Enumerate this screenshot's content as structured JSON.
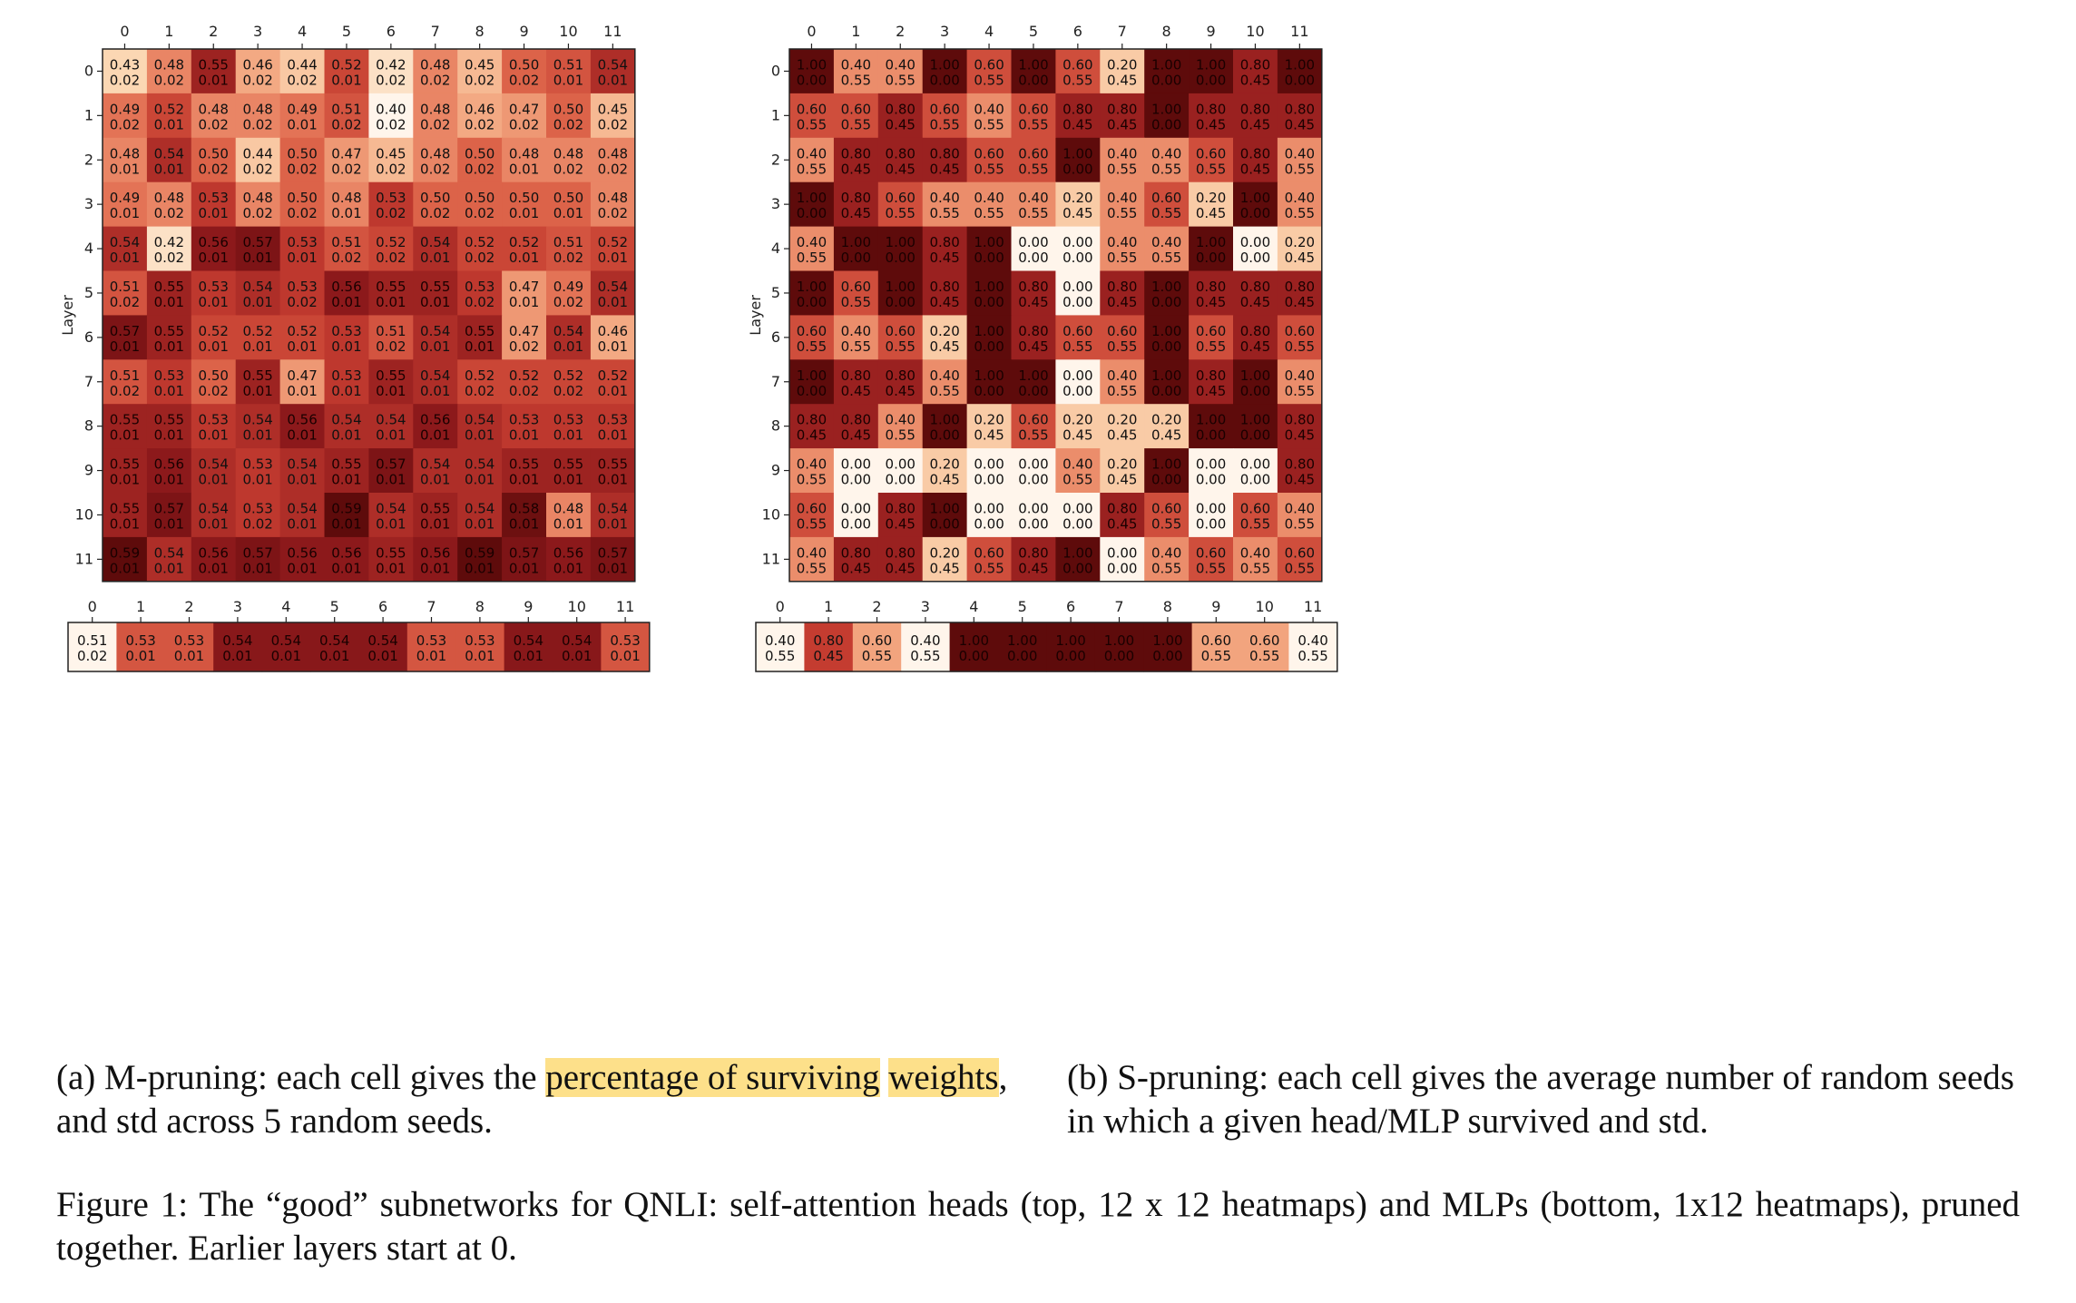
{
  "chart_data": [
    {
      "id": "m_heads",
      "type": "heatmap",
      "ylabel": "Layer",
      "x": [
        "0",
        "1",
        "2",
        "3",
        "4",
        "5",
        "6",
        "7",
        "8",
        "9",
        "10",
        "11"
      ],
      "y": [
        "0",
        "1",
        "2",
        "3",
        "4",
        "5",
        "6",
        "7",
        "8",
        "9",
        "10",
        "11"
      ],
      "values": [
        [
          "0.43\n0.02",
          "0.48\n0.02",
          "0.55\n0.01",
          "0.46\n0.02",
          "0.44\n0.02",
          "0.52\n0.01",
          "0.42\n0.02",
          "0.48\n0.02",
          "0.45\n0.02",
          "0.50\n0.02",
          "0.51\n0.01",
          "0.54\n0.01"
        ],
        [
          "0.49\n0.02",
          "0.52\n0.01",
          "0.48\n0.02",
          "0.48\n0.02",
          "0.49\n0.01",
          "0.51\n0.02",
          "0.40\n0.02",
          "0.48\n0.02",
          "0.46\n0.02",
          "0.47\n0.02",
          "0.50\n0.02",
          "0.45\n0.02"
        ],
        [
          "0.48\n0.01",
          "0.54\n0.01",
          "0.50\n0.02",
          "0.44\n0.02",
          "0.50\n0.02",
          "0.47\n0.02",
          "0.45\n0.02",
          "0.48\n0.02",
          "0.50\n0.02",
          "0.48\n0.01",
          "0.48\n0.02",
          "0.48\n0.02"
        ],
        [
          "0.49\n0.01",
          "0.48\n0.02",
          "0.53\n0.01",
          "0.48\n0.02",
          "0.50\n0.02",
          "0.48\n0.01",
          "0.53\n0.02",
          "0.50\n0.02",
          "0.50\n0.02",
          "0.50\n0.01",
          "0.50\n0.01",
          "0.48\n0.02"
        ],
        [
          "0.54\n0.01",
          "0.42\n0.02",
          "0.56\n0.01",
          "0.57\n0.01",
          "0.53\n0.01",
          "0.51\n0.02",
          "0.52\n0.02",
          "0.54\n0.01",
          "0.52\n0.02",
          "0.52\n0.01",
          "0.51\n0.02",
          "0.52\n0.01"
        ],
        [
          "0.51\n0.02",
          "0.55\n0.01",
          "0.53\n0.01",
          "0.54\n0.01",
          "0.53\n0.02",
          "0.56\n0.01",
          "0.55\n0.01",
          "0.55\n0.01",
          "0.53\n0.02",
          "0.47\n0.01",
          "0.49\n0.02",
          "0.54\n0.01"
        ],
        [
          "0.57\n0.01",
          "0.55\n0.01",
          "0.52\n0.01",
          "0.52\n0.01",
          "0.52\n0.01",
          "0.53\n0.01",
          "0.51\n0.02",
          "0.54\n0.01",
          "0.55\n0.01",
          "0.47\n0.02",
          "0.54\n0.01",
          "0.46\n0.01"
        ],
        [
          "0.51\n0.02",
          "0.53\n0.01",
          "0.50\n0.02",
          "0.55\n0.01",
          "0.47\n0.01",
          "0.53\n0.01",
          "0.55\n0.01",
          "0.54\n0.01",
          "0.52\n0.02",
          "0.52\n0.02",
          "0.52\n0.02",
          "0.52\n0.01"
        ],
        [
          "0.55\n0.01",
          "0.55\n0.01",
          "0.53\n0.01",
          "0.54\n0.01",
          "0.56\n0.01",
          "0.54\n0.01",
          "0.54\n0.01",
          "0.56\n0.01",
          "0.54\n0.01",
          "0.53\n0.01",
          "0.53\n0.01",
          "0.53\n0.01"
        ],
        [
          "0.55\n0.01",
          "0.56\n0.01",
          "0.54\n0.01",
          "0.53\n0.01",
          "0.54\n0.01",
          "0.55\n0.01",
          "0.57\n0.01",
          "0.54\n0.01",
          "0.54\n0.01",
          "0.55\n0.01",
          "0.55\n0.01",
          "0.55\n0.01"
        ],
        [
          "0.55\n0.01",
          "0.57\n0.01",
          "0.54\n0.01",
          "0.53\n0.02",
          "0.54\n0.01",
          "0.59\n0.01",
          "0.54\n0.01",
          "0.55\n0.01",
          "0.54\n0.01",
          "0.58\n0.01",
          "0.48\n0.01",
          "0.54\n0.01"
        ],
        [
          "0.59\n0.01",
          "0.54\n0.01",
          "0.56\n0.01",
          "0.57\n0.01",
          "0.56\n0.01",
          "0.56\n0.01",
          "0.55\n0.01",
          "0.56\n0.01",
          "0.59\n0.01",
          "0.57\n0.01",
          "0.56\n0.01",
          "0.57\n0.01"
        ]
      ],
      "color_range": [
        0.4,
        0.59
      ]
    },
    {
      "id": "m_mlp",
      "type": "heatmap",
      "x": [
        "0",
        "1",
        "2",
        "3",
        "4",
        "5",
        "6",
        "7",
        "8",
        "9",
        "10",
        "11"
      ],
      "values": [
        [
          "0.51\n0.02",
          "0.53\n0.01",
          "0.53\n0.01",
          "0.54\n0.01",
          "0.54\n0.01",
          "0.54\n0.01",
          "0.54\n0.01",
          "0.53\n0.01",
          "0.53\n0.01",
          "0.54\n0.01",
          "0.54\n0.01",
          "0.53\n0.01"
        ]
      ],
      "color_range": [
        0.51,
        0.545
      ]
    },
    {
      "id": "s_heads",
      "type": "heatmap",
      "ylabel": "Layer",
      "x": [
        "0",
        "1",
        "2",
        "3",
        "4",
        "5",
        "6",
        "7",
        "8",
        "9",
        "10",
        "11"
      ],
      "y": [
        "0",
        "1",
        "2",
        "3",
        "4",
        "5",
        "6",
        "7",
        "8",
        "9",
        "10",
        "11"
      ],
      "values": [
        [
          "1.00\n0.00",
          "0.40\n0.55",
          "0.40\n0.55",
          "1.00\n0.00",
          "0.60\n0.55",
          "1.00\n0.00",
          "0.60\n0.55",
          "0.20\n0.45",
          "1.00\n0.00",
          "1.00\n0.00",
          "0.80\n0.45",
          "1.00\n0.00"
        ],
        [
          "0.60\n0.55",
          "0.60\n0.55",
          "0.80\n0.45",
          "0.60\n0.55",
          "0.40\n0.55",
          "0.60\n0.55",
          "0.80\n0.45",
          "0.80\n0.45",
          "1.00\n0.00",
          "0.80\n0.45",
          "0.80\n0.45",
          "0.80\n0.45"
        ],
        [
          "0.40\n0.55",
          "0.80\n0.45",
          "0.80\n0.45",
          "0.80\n0.45",
          "0.60\n0.55",
          "0.60\n0.55",
          "1.00\n0.00",
          "0.40\n0.55",
          "0.40\n0.55",
          "0.60\n0.55",
          "0.80\n0.45",
          "0.40\n0.55"
        ],
        [
          "1.00\n0.00",
          "0.80\n0.45",
          "0.60\n0.55",
          "0.40\n0.55",
          "0.40\n0.55",
          "0.40\n0.55",
          "0.20\n0.45",
          "0.40\n0.55",
          "0.60\n0.55",
          "0.20\n0.45",
          "1.00\n0.00",
          "0.40\n0.55"
        ],
        [
          "0.40\n0.55",
          "1.00\n0.00",
          "1.00\n0.00",
          "0.80\n0.45",
          "1.00\n0.00",
          "0.00\n0.00",
          "0.00\n0.00",
          "0.40\n0.55",
          "0.40\n0.55",
          "1.00\n0.00",
          "0.00\n0.00",
          "0.20\n0.45"
        ],
        [
          "1.00\n0.00",
          "0.60\n0.55",
          "1.00\n0.00",
          "0.80\n0.45",
          "1.00\n0.00",
          "0.80\n0.45",
          "0.00\n0.00",
          "0.80\n0.45",
          "1.00\n0.00",
          "0.80\n0.45",
          "0.80\n0.45",
          "0.80\n0.45"
        ],
        [
          "0.60\n0.55",
          "0.40\n0.55",
          "0.60\n0.55",
          "0.20\n0.45",
          "1.00\n0.00",
          "0.80\n0.45",
          "0.60\n0.55",
          "0.60\n0.55",
          "1.00\n0.00",
          "0.60\n0.55",
          "0.80\n0.45",
          "0.60\n0.55"
        ],
        [
          "1.00\n0.00",
          "0.80\n0.45",
          "0.80\n0.45",
          "0.40\n0.55",
          "1.00\n0.00",
          "1.00\n0.00",
          "0.00\n0.00",
          "0.40\n0.55",
          "1.00\n0.00",
          "0.80\n0.45",
          "1.00\n0.00",
          "0.40\n0.55"
        ],
        [
          "0.80\n0.45",
          "0.80\n0.45",
          "0.40\n0.55",
          "1.00\n0.00",
          "0.20\n0.45",
          "0.60\n0.55",
          "0.20\n0.45",
          "0.20\n0.45",
          "0.20\n0.45",
          "1.00\n0.00",
          "1.00\n0.00",
          "0.80\n0.45"
        ],
        [
          "0.40\n0.55",
          "0.00\n0.00",
          "0.00\n0.00",
          "0.20\n0.45",
          "0.00\n0.00",
          "0.00\n0.00",
          "0.40\n0.55",
          "0.20\n0.45",
          "1.00\n0.00",
          "0.00\n0.00",
          "0.00\n0.00",
          "0.80\n0.45"
        ],
        [
          "0.60\n0.55",
          "0.00\n0.00",
          "0.80\n0.45",
          "1.00\n0.00",
          "0.00\n0.00",
          "0.00\n0.00",
          "0.00\n0.00",
          "0.80\n0.45",
          "0.60\n0.55",
          "0.00\n0.00",
          "0.60\n0.55",
          "0.40\n0.55"
        ],
        [
          "0.40\n0.55",
          "0.80\n0.45",
          "0.80\n0.45",
          "0.20\n0.45",
          "0.60\n0.55",
          "0.80\n0.45",
          "1.00\n0.00",
          "0.00\n0.00",
          "0.40\n0.55",
          "0.60\n0.55",
          "0.40\n0.55",
          "0.60\n0.55"
        ]
      ],
      "color_range": [
        0.0,
        1.0
      ]
    },
    {
      "id": "s_mlp",
      "type": "heatmap",
      "x": [
        "0",
        "1",
        "2",
        "3",
        "4",
        "5",
        "6",
        "7",
        "8",
        "9",
        "10",
        "11"
      ],
      "values": [
        [
          "0.40\n0.55",
          "0.80\n0.45",
          "0.60\n0.55",
          "0.40\n0.55",
          "1.00\n0.00",
          "1.00\n0.00",
          "1.00\n0.00",
          "1.00\n0.00",
          "1.00\n0.00",
          "0.60\n0.55",
          "0.60\n0.55",
          "0.40\n0.55"
        ]
      ],
      "color_range": [
        0.4,
        1.0
      ]
    }
  ],
  "colormap": [
    "#fff5eb",
    "#fbd5b0",
    "#f2a47e",
    "#e06a4e",
    "#c43c30",
    "#8f1a1c",
    "#5e0b0b"
  ],
  "captions": {
    "a_prefix": "(a) M-pruning: each cell gives the ",
    "a_highlight_1": "percentage of surviving",
    "a_highlight_2": "weights",
    "a_suffix": ", and std across 5 random seeds.",
    "b": "(b) S-pruning: each cell gives the average number of random seeds in which a given head/MLP survived and std.",
    "figure": "Figure 1: The “good” subnetworks for QNLI: self-attention heads (top, 12 x 12 heatmaps) and MLPs (bottom, 1x12 heatmaps), pruned together. Earlier layers start at 0."
  }
}
